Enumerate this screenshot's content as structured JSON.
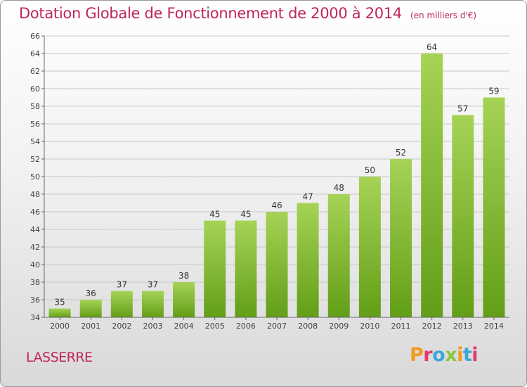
{
  "header": {
    "title": "Dotation Globale de Fonctionnement de 2000 à 2014",
    "unit": "(en milliers d'€)"
  },
  "footer": {
    "commune": "LASSERRE",
    "logo_text": "Proxiti",
    "logo_colors": [
      "#f39a1f",
      "#e03a6e",
      "#3aa7d8",
      "#8cc63f",
      "#f39a1f",
      "#3aa7d8",
      "#e03a6e"
    ]
  },
  "colors": {
    "title": "#c0245d",
    "bar_light": "#a6d356",
    "bar_dark": "#629e17",
    "grid": "#c8c8c8",
    "axis": "#666666"
  },
  "chart_data": {
    "type": "bar",
    "title": "Dotation Globale de Fonctionnement de 2000 à 2014",
    "subtitle": "(en milliers d'€)",
    "xlabel": "",
    "ylabel": "",
    "categories": [
      "2000",
      "2001",
      "2002",
      "2003",
      "2004",
      "2005",
      "2006",
      "2007",
      "2008",
      "2009",
      "2010",
      "2011",
      "2012",
      "2013",
      "2014"
    ],
    "values": [
      35,
      36,
      37,
      37,
      38,
      45,
      45,
      46,
      47,
      48,
      50,
      52,
      64,
      57,
      59
    ],
    "ylim": [
      34,
      66
    ],
    "yticks": [
      34,
      36,
      38,
      40,
      42,
      44,
      46,
      48,
      50,
      52,
      54,
      56,
      58,
      60,
      62,
      64,
      66
    ],
    "grid": true,
    "data_labels": true
  }
}
